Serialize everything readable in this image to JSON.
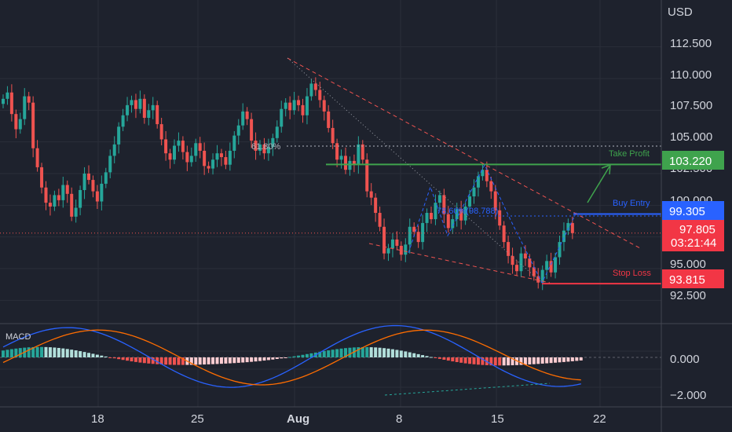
{
  "colors": {
    "background": "#1e222d",
    "grid": "#2a2e39",
    "bull": "#26a69a",
    "bear": "#ef5350",
    "take_profit": "#3fa34d",
    "buy_entry": "#2962ff",
    "stop_loss": "#f23645",
    "macd_line": "#2962ff",
    "signal_line": "#ff6d00",
    "text": "#d1d4dc"
  },
  "chart_data": {
    "type": "candlestick",
    "currency": "USD",
    "y_ticks": [
      "112.500",
      "110.000",
      "107.500",
      "105.000",
      "102.500",
      "100.000",
      "95.000",
      "92.500"
    ],
    "ylim": [
      91.0,
      114.0
    ],
    "x_ticks": [
      "18",
      "25",
      "Aug",
      "8",
      "15",
      "22"
    ],
    "levels": {
      "take_profit": {
        "label": "Take Profit",
        "value": "103.220"
      },
      "buy_entry": {
        "label": "Buy Entry",
        "value": "99.305"
      },
      "stop_loss": {
        "label": "Stop Loss",
        "value": "93.815"
      },
      "current_price": {
        "value": "97.805",
        "countdown": "03:21:44"
      }
    },
    "annotations": {
      "fib_61_8": "61.80%",
      "fib_78_6": "78.60%(98.788)"
    },
    "macd": {
      "label": "MACD",
      "y_ticks": [
        "0.000",
        "−2.000"
      ]
    }
  }
}
